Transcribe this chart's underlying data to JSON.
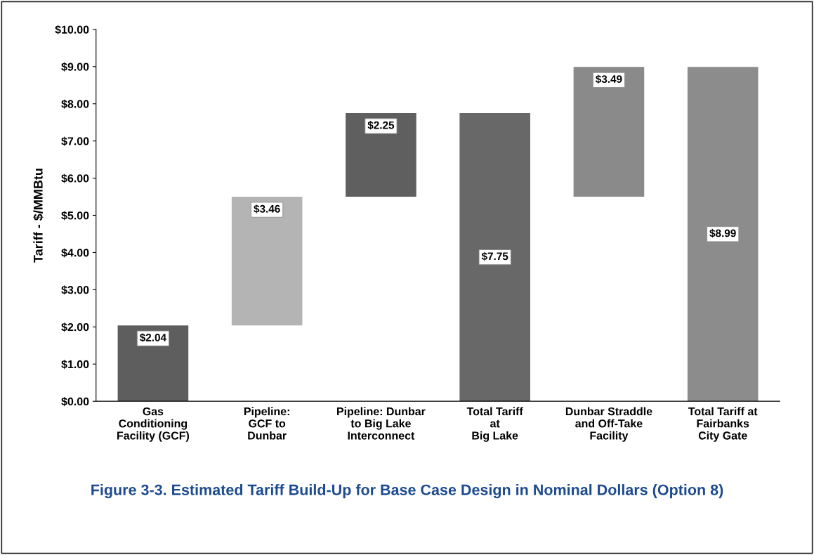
{
  "chart_data": {
    "type": "bar",
    "title": "Figure 3-3. Estimated Tariff Build-Up for Base Case Design in Nominal Dollars (Option 8)",
    "ylabel": "Tariff - $/MMBtu",
    "categories": [
      "Gas\nConditioning\nFacility (GCF)",
      "Pipeline:\nGCF to\nDunbar",
      "Pipeline: Dunbar\nto Big Lake\nInterconnect",
      "Total Tariff\nat\nBig Lake",
      "Dunbar Straddle\nand Off-Take\nFacility",
      "Total Tariff at\nFairbanks\nCity Gate"
    ],
    "values": [
      2.04,
      3.46,
      2.25,
      7.75,
      3.49,
      8.99
    ],
    "base": [
      0,
      2.04,
      5.5,
      0,
      5.5,
      0
    ],
    "colors": [
      "#5e5e5e",
      "#b4b4b4",
      "#5f5f5f",
      "#686868",
      "#8a8a8a",
      "#8c8c8c"
    ],
    "value_labels": [
      "$2.04",
      "$3.46",
      "$2.25",
      "$7.75",
      "$3.49",
      "$8.99"
    ],
    "ylim": [
      0,
      10
    ],
    "yticks": [
      {
        "value": 0,
        "label": "$0.00"
      },
      {
        "value": 1,
        "label": "$1.00"
      },
      {
        "value": 2,
        "label": "$2.00"
      },
      {
        "value": 3,
        "label": "$3.00"
      },
      {
        "value": 4,
        "label": "$4.00"
      },
      {
        "value": 5,
        "label": "$5.00"
      },
      {
        "value": 6,
        "label": "$6.00"
      },
      {
        "value": 7,
        "label": "$7.00"
      },
      {
        "value": 8,
        "label": "$8.00"
      },
      {
        "value": 9,
        "label": "$9.00"
      },
      {
        "value": 10,
        "label": "$10.00"
      }
    ],
    "grid": false,
    "legend": false
  }
}
